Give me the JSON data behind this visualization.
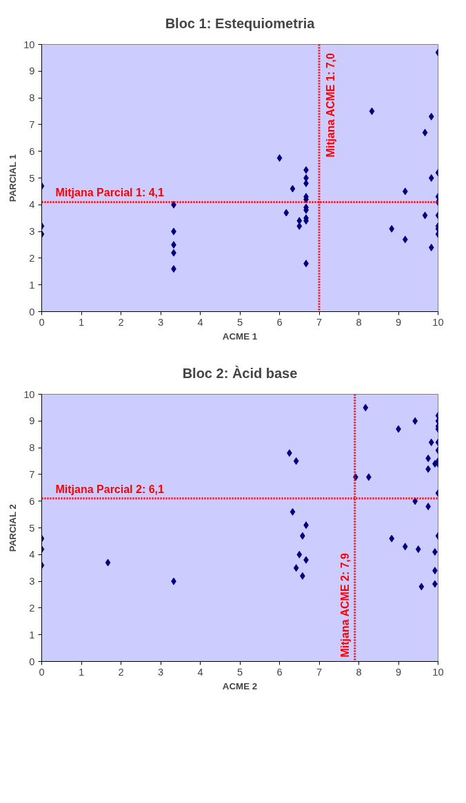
{
  "chart_data": [
    {
      "type": "scatter",
      "title": "Bloc 1: Estequiometria",
      "xlabel": "ACME 1",
      "ylabel": "PARCIAL 1",
      "xlim": [
        0,
        10
      ],
      "ylim": [
        0,
        10
      ],
      "xticks": [
        0,
        1,
        2,
        3,
        4,
        5,
        6,
        7,
        8,
        9,
        10
      ],
      "yticks": [
        0,
        1,
        2,
        3,
        4,
        5,
        6,
        7,
        8,
        9,
        10
      ],
      "grid": false,
      "marker": "diamond",
      "color": "#000080",
      "x": [
        0,
        0,
        0,
        3.33,
        3.33,
        3.33,
        3.33,
        3.33,
        6.0,
        6.17,
        6.33,
        6.5,
        6.5,
        6.67,
        6.67,
        6.67,
        6.67,
        6.67,
        6.67,
        6.67,
        6.67,
        6.67,
        6.67,
        8.33,
        8.83,
        9.17,
        9.17,
        9.67,
        9.67,
        9.83,
        9.83,
        9.83,
        10,
        10,
        10,
        10,
        10,
        10,
        10,
        10
      ],
      "values": [
        4.7,
        3.2,
        2.9,
        4.0,
        3.0,
        2.5,
        2.2,
        1.6,
        5.75,
        3.7,
        4.6,
        3.4,
        3.2,
        5.3,
        5.0,
        4.8,
        4.3,
        4.2,
        3.9,
        3.8,
        3.5,
        3.4,
        1.8,
        7.5,
        3.1,
        4.5,
        2.7,
        6.7,
        3.6,
        7.3,
        5.0,
        2.4,
        9.7,
        5.2,
        4.3,
        4.1,
        3.6,
        3.2,
        3.1,
        2.9
      ],
      "ref_lines": [
        {
          "axis": "x",
          "value": 7.0,
          "label": "Mitjana ACME 1: 7,0",
          "color": "#ff0000",
          "line_style": "dotted"
        },
        {
          "axis": "y",
          "value": 4.1,
          "label": "Mitjana Parcial 1: 4,1",
          "color": "#ff0000",
          "line_style": "dotted"
        }
      ]
    },
    {
      "type": "scatter",
      "title": "Bloc 2: Àcid base",
      "xlabel": "ACME 2",
      "ylabel": "PARCIAL 2",
      "xlim": [
        0,
        10
      ],
      "ylim": [
        0,
        10
      ],
      "xticks": [
        0,
        1,
        2,
        3,
        4,
        5,
        6,
        7,
        8,
        9,
        10
      ],
      "yticks": [
        0,
        1,
        2,
        3,
        4,
        5,
        6,
        7,
        8,
        9,
        10
      ],
      "grid": false,
      "marker": "diamond",
      "color": "#000080",
      "x": [
        0,
        0,
        0,
        1.67,
        3.33,
        6.25,
        6.42,
        6.33,
        6.67,
        6.58,
        6.5,
        6.67,
        6.42,
        6.58,
        7.92,
        8.17,
        8.25,
        8.83,
        9.0,
        9.17,
        9.42,
        9.42,
        9.5,
        9.58,
        9.75,
        9.75,
        9.75,
        9.83,
        9.92,
        9.92,
        9.92,
        9.92,
        10,
        10,
        10,
        10,
        10,
        10,
        10,
        10,
        10,
        10
      ],
      "values": [
        4.6,
        4.2,
        3.6,
        3.7,
        3.0,
        7.8,
        7.5,
        5.6,
        5.1,
        4.7,
        4.0,
        3.8,
        3.5,
        3.2,
        6.9,
        9.5,
        6.9,
        4.6,
        8.7,
        4.3,
        9.0,
        6.0,
        4.2,
        2.8,
        7.6,
        7.2,
        5.8,
        8.2,
        4.1,
        3.4,
        2.9,
        7.4,
        9.2,
        9.0,
        8.8,
        8.7,
        8.2,
        7.9,
        7.5,
        7.4,
        6.3,
        4.7
      ],
      "ref_lines": [
        {
          "axis": "x",
          "value": 7.9,
          "label": "Mitjana ACME 2: 7,9",
          "color": "#ff0000",
          "line_style": "dotted"
        },
        {
          "axis": "y",
          "value": 6.1,
          "label": "Mitjana Parcial 2: 6,1",
          "color": "#ff0000",
          "line_style": "dotted"
        }
      ]
    }
  ]
}
